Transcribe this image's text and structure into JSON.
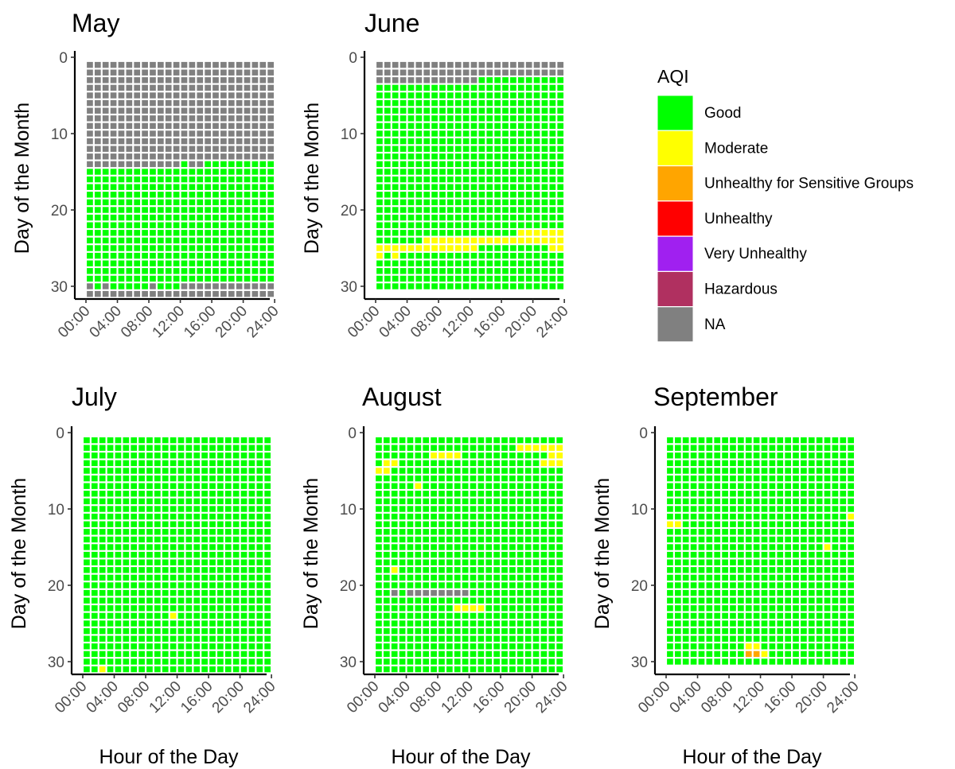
{
  "chart_data": {
    "type": "heatmap",
    "colors": {
      "Good": "#00ff00",
      "Moderate": "#ffff00",
      "Unhealthy for Sensitive Groups": "#ffa500",
      "Unhealthy": "#ff0000",
      "Very Unhealthy": "#a020f0",
      "Hazardous": "#b03060",
      "NA": "#808080"
    },
    "legend": {
      "title": "AQI",
      "position": "top-right",
      "items": [
        "Good",
        "Moderate",
        "Unhealthy for Sensitive Groups",
        "Unhealthy",
        "Very Unhealthy",
        "Hazardous",
        "NA"
      ]
    },
    "x_tick_labels": [
      "00:00",
      "04:00",
      "08:00",
      "12:00",
      "16:00",
      "20:00",
      "24:00"
    ],
    "y_tick_labels": [
      "0",
      "10",
      "20",
      "30"
    ],
    "xlabel": "Hour of the Day",
    "ylabel": "Day of the Month",
    "xlim": [
      0,
      24
    ],
    "ylim": [
      0,
      31
    ],
    "y_reversed": true,
    "panels": [
      {
        "title": "May",
        "days": 31,
        "default": "Good",
        "rows": [
          {
            "days": [
              1,
              13
            ],
            "category": "NA"
          },
          {
            "days": [
              14,
              14
            ],
            "hours": [
              0,
              11
            ],
            "category": "NA"
          },
          {
            "days": [
              30,
              31
            ],
            "category": "NA"
          }
        ],
        "cells": [
          {
            "day": 14,
            "hour": 13,
            "category": "NA"
          },
          {
            "day": 14,
            "hour": 14,
            "category": "NA"
          },
          {
            "day": 30,
            "hour": 1,
            "category": "Good"
          },
          {
            "day": 30,
            "hour": 3,
            "category": "Good"
          },
          {
            "day": 30,
            "hour": 4,
            "category": "Good"
          },
          {
            "day": 30,
            "hour": 5,
            "category": "Good"
          },
          {
            "day": 30,
            "hour": 6,
            "category": "Good"
          },
          {
            "day": 30,
            "hour": 7,
            "category": "Good"
          },
          {
            "day": 30,
            "hour": 9,
            "category": "Good"
          },
          {
            "day": 30,
            "hour": 10,
            "category": "Good"
          },
          {
            "day": 30,
            "hour": 11,
            "category": "Good"
          }
        ]
      },
      {
        "title": "June",
        "days": 30,
        "default": "Good",
        "rows": [
          {
            "days": [
              1,
              2
            ],
            "category": "NA"
          },
          {
            "days": [
              3,
              3
            ],
            "hours": [
              0,
              12
            ],
            "category": "NA"
          },
          {
            "days": [
              23,
              23
            ],
            "hours": [
              18,
              23
            ],
            "category": "Moderate"
          },
          {
            "days": [
              24,
              24
            ],
            "hours": [
              6,
              23
            ],
            "category": "Moderate"
          },
          {
            "days": [
              25,
              25
            ],
            "hours": [
              0,
              12
            ],
            "category": "Moderate"
          },
          {
            "days": [
              25,
              25
            ],
            "hours": [
              22,
              23
            ],
            "category": "Moderate"
          }
        ],
        "cells": [
          {
            "day": 26,
            "hour": 0,
            "category": "Moderate"
          },
          {
            "day": 26,
            "hour": 2,
            "category": "Moderate"
          }
        ]
      },
      {
        "title": "July",
        "days": 31,
        "default": "Good",
        "rows": [],
        "cells": [
          {
            "day": 24,
            "hour": 11,
            "category": "Moderate"
          },
          {
            "day": 31,
            "hour": 2,
            "category": "Moderate"
          }
        ]
      },
      {
        "title": "August",
        "days": 31,
        "default": "Good",
        "rows": [
          {
            "days": [
              2,
              2
            ],
            "hours": [
              18,
              23
            ],
            "category": "Moderate"
          },
          {
            "days": [
              3,
              3
            ],
            "hours": [
              7,
              10
            ],
            "category": "Moderate"
          },
          {
            "days": [
              3,
              3
            ],
            "hours": [
              22,
              23
            ],
            "category": "Moderate"
          },
          {
            "days": [
              4,
              4
            ],
            "hours": [
              21,
              23
            ],
            "category": "Moderate"
          },
          {
            "days": [
              21,
              21
            ],
            "hours": [
              4,
              11
            ],
            "category": "NA"
          },
          {
            "days": [
              23,
              23
            ],
            "hours": [
              10,
              13
            ],
            "category": "Moderate"
          }
        ],
        "cells": [
          {
            "day": 4,
            "hour": 1,
            "category": "Moderate"
          },
          {
            "day": 4,
            "hour": 2,
            "category": "Moderate"
          },
          {
            "day": 5,
            "hour": 0,
            "category": "Moderate"
          },
          {
            "day": 5,
            "hour": 1,
            "category": "Moderate"
          },
          {
            "day": 7,
            "hour": 5,
            "category": "Moderate"
          },
          {
            "day": 18,
            "hour": 2,
            "category": "Moderate"
          },
          {
            "day": 21,
            "hour": 2,
            "category": "NA"
          }
        ]
      },
      {
        "title": "September",
        "days": 30,
        "default": "Good",
        "rows": [],
        "cells": [
          {
            "day": 11,
            "hour": 23,
            "category": "Moderate"
          },
          {
            "day": 12,
            "hour": 0,
            "category": "Moderate"
          },
          {
            "day": 12,
            "hour": 1,
            "category": "Moderate"
          },
          {
            "day": 15,
            "hour": 20,
            "category": "Moderate"
          },
          {
            "day": 28,
            "hour": 10,
            "category": "Moderate"
          },
          {
            "day": 28,
            "hour": 11,
            "category": "Moderate"
          },
          {
            "day": 29,
            "hour": 10,
            "category": "Unhealthy for Sensitive Groups"
          },
          {
            "day": 29,
            "hour": 11,
            "category": "Unhealthy for Sensitive Groups"
          },
          {
            "day": 29,
            "hour": 12,
            "category": "Moderate"
          }
        ]
      }
    ]
  }
}
